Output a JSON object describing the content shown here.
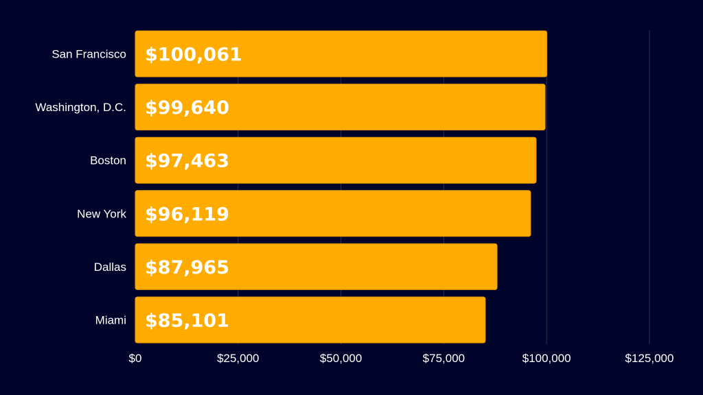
{
  "colors": {
    "background": "#01042a",
    "bar": "#ffab00",
    "bar_stroke": "#e69500",
    "grid": "#2b2f55",
    "text": "#ffffff"
  },
  "chart_data": {
    "type": "bar",
    "orientation": "horizontal",
    "title": "",
    "xlabel": "",
    "ylabel": "",
    "categories": [
      "San Francisco",
      "Washington, D.C.",
      "Boston",
      "New York",
      "Dallas",
      "Miami"
    ],
    "values": [
      100061,
      99640,
      97463,
      96119,
      87965,
      85101
    ],
    "value_labels": [
      "$100,061",
      "$99,640",
      "$97,463",
      "$96,119",
      "$87,965",
      "$85,101"
    ],
    "xlim": [
      0,
      125000
    ],
    "ticks": [
      0,
      25000,
      50000,
      75000,
      100000,
      125000
    ],
    "tick_labels": [
      "$0",
      "$25,000",
      "$50,000",
      "$75,000",
      "$100,000",
      "$125,000"
    ],
    "grid": true,
    "legend": "none"
  }
}
